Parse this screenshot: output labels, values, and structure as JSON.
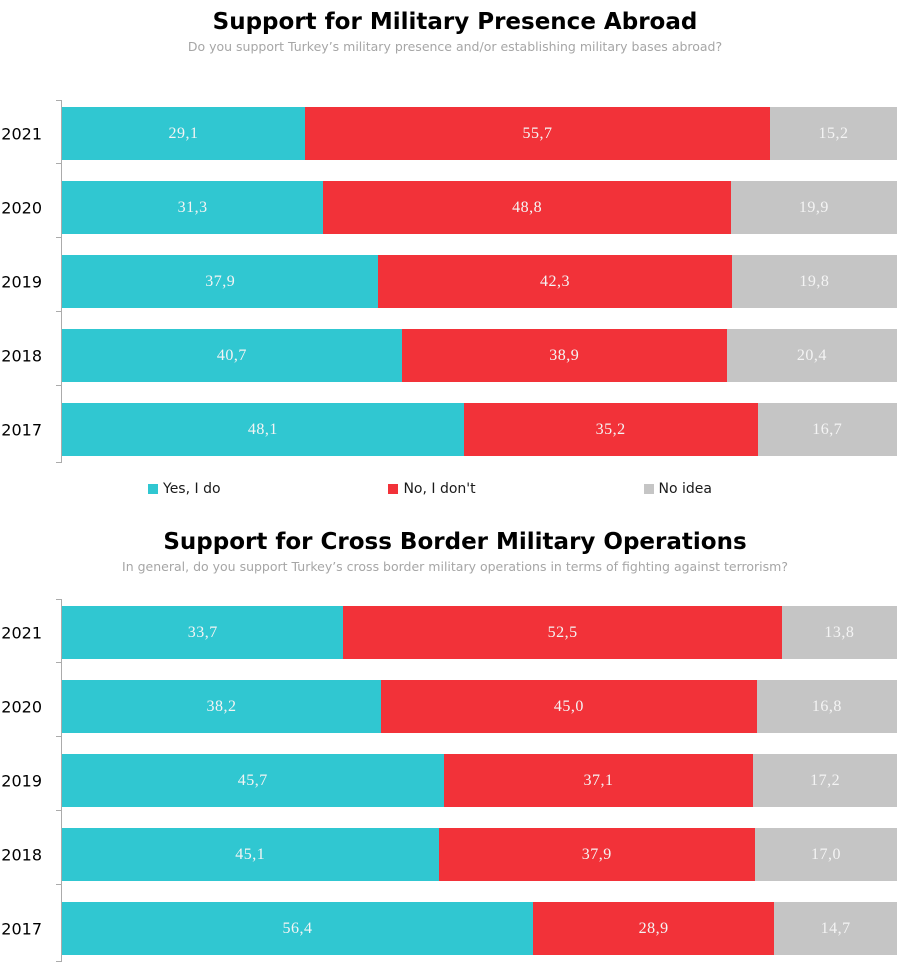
{
  "chart_data": [
    {
      "type": "bar",
      "stacked": true,
      "orientation": "horizontal",
      "title": "Support for Military Presence Abroad",
      "subtitle": "Do you support Turkey’s military presence and/or establishing military bases abroad?",
      "categories": [
        "2021",
        "2020",
        "2019",
        "2018",
        "2017"
      ],
      "series": [
        {
          "name": "Yes, I do",
          "color": "#30c7d1",
          "values": [
            29.1,
            31.3,
            37.9,
            40.7,
            48.1
          ],
          "labels": [
            "29,1",
            "31,3",
            "37,9",
            "40,7",
            "48,1"
          ]
        },
        {
          "name": "No, I don't",
          "color": "#f23239",
          "values": [
            55.7,
            48.8,
            42.3,
            38.9,
            35.2
          ],
          "labels": [
            "55,7",
            "48,8",
            "42,3",
            "38,9",
            "35,2"
          ]
        },
        {
          "name": "No idea",
          "color": "#c5c5c5",
          "values": [
            15.2,
            19.9,
            19.8,
            20.4,
            16.7
          ],
          "labels": [
            "15,2",
            "19,9",
            "19,8",
            "20,4",
            "16,7"
          ]
        }
      ],
      "xlim": [
        0,
        100
      ],
      "decimal_separator": ",",
      "grid": false,
      "legend": {
        "visible": true,
        "position": "bottom"
      }
    },
    {
      "type": "bar",
      "stacked": true,
      "orientation": "horizontal",
      "title": "Support for Cross Border Military Operations",
      "subtitle": "In general, do you support Turkey’s cross border military operations in terms of fighting against terrorism?",
      "categories": [
        "2021",
        "2020",
        "2019",
        "2018",
        "2017"
      ],
      "series": [
        {
          "name": "Yes, I do",
          "color": "#30c7d1",
          "values": [
            33.7,
            38.2,
            45.7,
            45.1,
            56.4
          ],
          "labels": [
            "33,7",
            "38,2",
            "45,7",
            "45,1",
            "56,4"
          ]
        },
        {
          "name": "No, I don't",
          "color": "#f23239",
          "values": [
            52.5,
            45.0,
            37.1,
            37.9,
            28.9
          ],
          "labels": [
            "52,5",
            "45,0",
            "37,1",
            "37,9",
            "28,9"
          ]
        },
        {
          "name": "No idea",
          "color": "#c5c5c5",
          "values": [
            13.8,
            16.8,
            17.2,
            17.0,
            14.7
          ],
          "labels": [
            "13,8",
            "16,8",
            "17,2",
            "17,0",
            "14,7"
          ]
        }
      ],
      "xlim": [
        0,
        100
      ],
      "decimal_separator": ",",
      "grid": false,
      "legend": {
        "visible": false,
        "position": "bottom"
      }
    }
  ],
  "colors": {
    "yes": "#30c7d1",
    "no": "#f23239",
    "no_idea": "#c5c5c5",
    "bar_label": "#f4f4f4",
    "axis": "#ababab",
    "title": "#000000",
    "subtitle": "#a6a6a6"
  }
}
